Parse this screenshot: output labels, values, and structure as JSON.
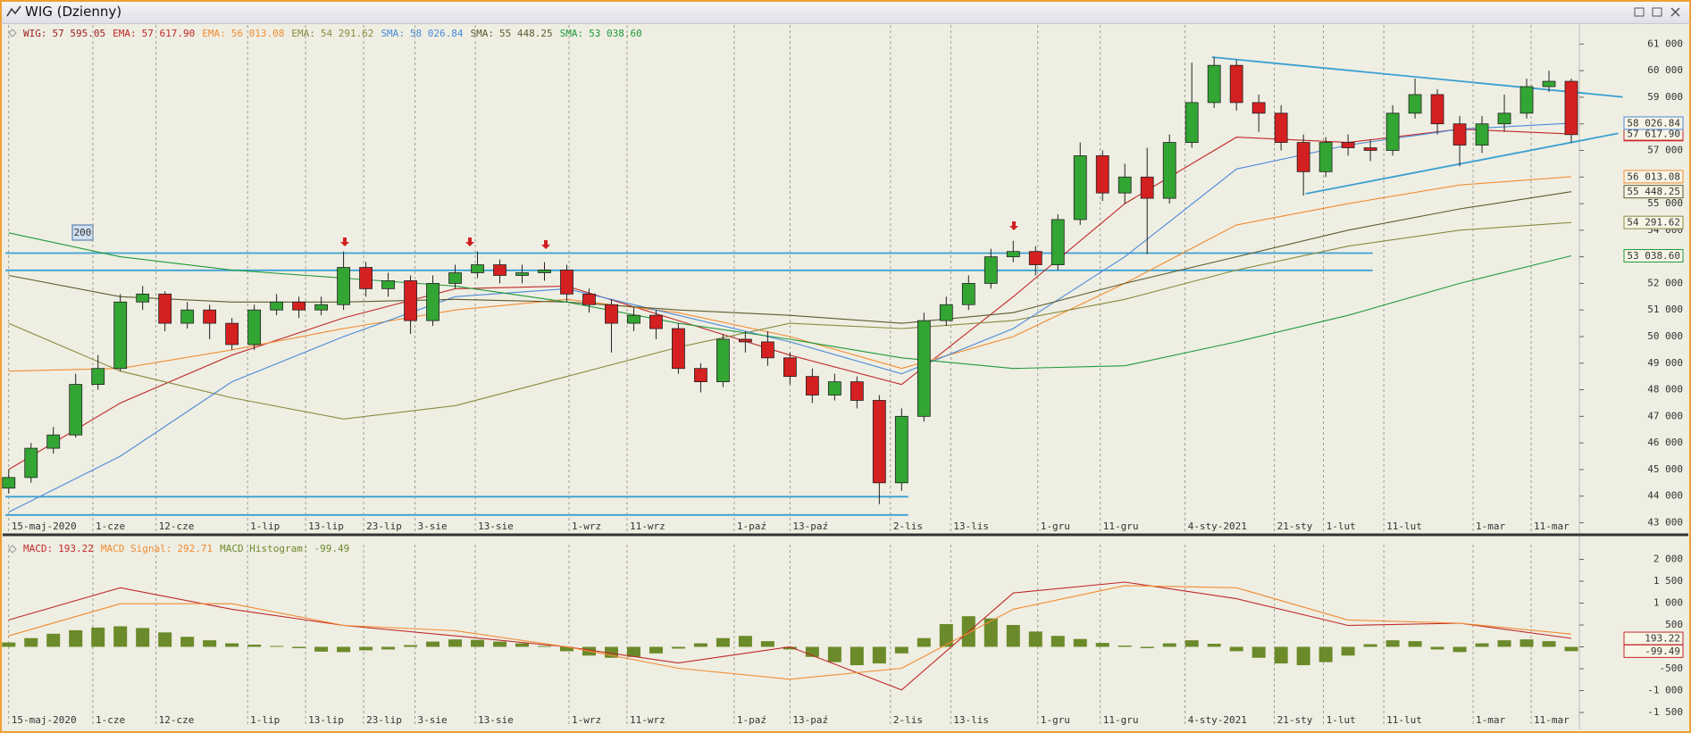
{
  "chart_data": [
    {
      "type": "candlestick",
      "title": "WIG (Dzienny)",
      "name": "WIG",
      "value_label": "57 595.05",
      "annotation": "200",
      "up_color": "#33a533",
      "down_color": "#d42020",
      "open": [
        44300,
        44700,
        45800,
        46300,
        48200,
        48800,
        51300,
        51600,
        50500,
        51000,
        50500,
        49700,
        51000,
        51300,
        51000,
        51200,
        52600,
        51800,
        52100,
        50600,
        52000,
        52400,
        52700,
        52300,
        52400,
        52500,
        51600,
        51200,
        50500,
        50800,
        50300,
        48800,
        48300,
        49900,
        49800,
        49200,
        48500,
        47800,
        48300,
        47600,
        44500,
        47000,
        50600,
        51200,
        52000,
        53000,
        53200,
        52700,
        54400,
        56800,
        55400,
        56000,
        55200,
        57300,
        58800,
        60200,
        58800,
        58400,
        57300,
        56200,
        57300,
        57100,
        57000,
        58400,
        59100,
        58000,
        57200,
        58000,
        58400,
        59400,
        59600
      ],
      "high": [
        45000,
        46000,
        46600,
        48600,
        49300,
        51600,
        51900,
        51700,
        51300,
        51200,
        50700,
        51200,
        51600,
        51500,
        51500,
        53200,
        52800,
        52400,
        52300,
        52300,
        52700,
        53200,
        52900,
        52700,
        52800,
        52700,
        51800,
        51400,
        51100,
        51000,
        50500,
        49000,
        50100,
        50200,
        50200,
        49400,
        48800,
        48600,
        48500,
        47800,
        47300,
        50900,
        51500,
        52300,
        53300,
        53600,
        53400,
        54600,
        57300,
        57000,
        56500,
        57100,
        57600,
        60300,
        60500,
        60400,
        59100,
        58700,
        57600,
        57500,
        57600,
        57400,
        58700,
        59700,
        59300,
        58300,
        58300,
        59100,
        59700,
        60000,
        59700
      ],
      "low": [
        44100,
        44500,
        45600,
        46200,
        48000,
        48700,
        51000,
        50200,
        50300,
        49900,
        49500,
        49500,
        50800,
        50700,
        50800,
        51000,
        51500,
        51500,
        50100,
        50400,
        51800,
        52200,
        52000,
        52000,
        52100,
        51300,
        50900,
        49400,
        50200,
        49900,
        48600,
        47900,
        48100,
        49400,
        48900,
        48200,
        47500,
        47600,
        47300,
        43700,
        44200,
        46800,
        50400,
        51000,
        51800,
        52800,
        52300,
        52500,
        54200,
        55100,
        55000,
        53100,
        55000,
        57100,
        58600,
        58500,
        57700,
        57000,
        55300,
        56000,
        56800,
        56600,
        56800,
        58200,
        57600,
        56400,
        56900,
        57700,
        58200,
        59200,
        57300
      ],
      "close": [
        44700,
        45800,
        46300,
        48200,
        48800,
        51300,
        51600,
        50500,
        51000,
        50500,
        49700,
        51000,
        51300,
        51000,
        51200,
        52600,
        51800,
        52100,
        50600,
        52000,
        52400,
        52700,
        52300,
        52400,
        52500,
        51600,
        51200,
        50500,
        50800,
        50300,
        48800,
        48300,
        49900,
        49800,
        49200,
        48500,
        47800,
        48300,
        47600,
        44500,
        47000,
        50600,
        51200,
        52000,
        53000,
        53200,
        52700,
        54400,
        56800,
        55400,
        56000,
        55200,
        57300,
        58800,
        60200,
        58800,
        58400,
        57300,
        56200,
        57300,
        57100,
        57000,
        58400,
        59100,
        58000,
        57200,
        58000,
        58400,
        59400,
        59600,
        57595.05
      ],
      "series": [
        {
          "name": "EMA",
          "value_label": "57 617.90",
          "color": "#c02828",
          "x": [
            0,
            5,
            10,
            15,
            20,
            25,
            30,
            35,
            40,
            45,
            50,
            55,
            60,
            65,
            70
          ],
          "values": [
            45000,
            47500,
            49300,
            50700,
            51800,
            51900,
            50600,
            49300,
            48200,
            51500,
            55000,
            57500,
            57300,
            57800,
            57617.9
          ]
        },
        {
          "name": "EMA",
          "value_label": "56 013.08",
          "color": "#f08c30",
          "x": [
            0,
            5,
            10,
            15,
            20,
            25,
            30,
            35,
            40,
            45,
            50,
            55,
            60,
            65,
            70
          ],
          "values": [
            48700,
            48800,
            49500,
            50300,
            51000,
            51400,
            50900,
            50000,
            48800,
            50000,
            52000,
            54200,
            55000,
            55700,
            56013.08
          ]
        },
        {
          "name": "EMA",
          "value_label": "54 291.62",
          "color": "#8a8a40",
          "x": [
            0,
            5,
            10,
            15,
            20,
            25,
            30,
            35,
            40,
            45,
            50,
            55,
            60,
            65,
            70
          ],
          "values": [
            50500,
            48700,
            47700,
            46900,
            47400,
            48500,
            49600,
            50500,
            50300,
            50600,
            51400,
            52500,
            53400,
            54000,
            54291.62
          ]
        },
        {
          "name": "SMA",
          "value_label": "58 026.84",
          "color": "#4a8ad8",
          "x": [
            0,
            5,
            10,
            15,
            20,
            25,
            30,
            35,
            40,
            45,
            50,
            55,
            60,
            65,
            70
          ],
          "values": [
            43400,
            45500,
            48300,
            50000,
            51500,
            51800,
            50800,
            49800,
            48600,
            50300,
            53000,
            56300,
            57200,
            57800,
            58026.84
          ]
        },
        {
          "name": "SMA",
          "value_label": "55 448.25",
          "color": "#5c5c30",
          "x": [
            0,
            5,
            10,
            15,
            20,
            25,
            30,
            35,
            40,
            45,
            50,
            55,
            60,
            65,
            70
          ],
          "values": [
            52300,
            51500,
            51300,
            51300,
            51400,
            51300,
            51000,
            50800,
            50500,
            50900,
            52000,
            53000,
            54000,
            54800,
            55448.25
          ]
        },
        {
          "name": "SMA",
          "value_label": "53 038.60",
          "color": "#1f9a3a",
          "x": [
            0,
            5,
            10,
            15,
            20,
            25,
            30,
            35,
            40,
            45,
            50,
            55,
            60,
            65,
            70
          ],
          "values": [
            53900,
            53000,
            52500,
            52200,
            51900,
            51300,
            50500,
            49900,
            49200,
            48800,
            48900,
            49800,
            50800,
            52000,
            53038.6
          ]
        }
      ],
      "lines_color": "#3aa0d0",
      "lines": [
        {
          "x": [
            -0.15,
            61.1
          ],
          "values": [
            53140,
            53140
          ]
        },
        {
          "x": [
            -0.15,
            61.1
          ],
          "values": [
            52490,
            52490
          ]
        },
        {
          "x": [
            -0.15,
            40.3
          ],
          "values": [
            43980,
            43980
          ]
        },
        {
          "x": [
            -0.15,
            40.3
          ],
          "values": [
            43290,
            43290
          ]
        },
        {
          "x": [
            53.9,
            72.3
          ],
          "values": [
            60510,
            59010
          ]
        },
        {
          "x": [
            58.1,
            72.1
          ],
          "values": [
            55370,
            57640
          ]
        }
      ],
      "xlim": [
        -0.15,
        70.36
      ],
      "xticks": [
        {
          "value": 0,
          "label": "15-maj-2020"
        },
        {
          "value": 3.77,
          "label": "1-cze"
        },
        {
          "value": 6.6,
          "label": "12-cze"
        },
        {
          "value": 10.7,
          "label": "1-lip"
        },
        {
          "value": 13.3,
          "label": "13-lip"
        },
        {
          "value": 15.9,
          "label": "23-lip"
        },
        {
          "value": 18.2,
          "label": "3-sie"
        },
        {
          "value": 20.9,
          "label": "13-sie"
        },
        {
          "value": 25.1,
          "label": "1-wrz"
        },
        {
          "value": 27.7,
          "label": "11-wrz"
        },
        {
          "value": 32.5,
          "label": "1-paź"
        },
        {
          "value": 35.0,
          "label": "13-paź"
        },
        {
          "value": 39.5,
          "label": "2-lis"
        },
        {
          "value": 42.2,
          "label": "13-lis"
        },
        {
          "value": 46.1,
          "label": "1-gru"
        },
        {
          "value": 48.9,
          "label": "11-gru"
        },
        {
          "value": 52.7,
          "label": "4-sty-2021"
        },
        {
          "value": 56.7,
          "label": "21-sty"
        },
        {
          "value": 58.9,
          "label": "1-lut"
        },
        {
          "value": 61.6,
          "label": "11-lut"
        },
        {
          "value": 65.6,
          "label": "1-mar"
        },
        {
          "value": 68.2,
          "label": "11-mar"
        }
      ],
      "ylim": [
        42680,
        61650
      ],
      "yticks": [
        {
          "value": 43000,
          "label": "43 000"
        },
        {
          "value": 44000,
          "label": "44 000"
        },
        {
          "value": 45000,
          "label": "45 000"
        },
        {
          "value": 46000,
          "label": "46 000"
        },
        {
          "value": 47000,
          "label": "47 000"
        },
        {
          "value": 48000,
          "label": "48 000"
        },
        {
          "value": 49000,
          "label": "49 000"
        },
        {
          "value": 50000,
          "label": "50 000"
        },
        {
          "value": 51000,
          "label": "51 000"
        },
        {
          "value": 52000,
          "label": "52 000"
        },
        {
          "value": 53000,
          "label": "53 000"
        },
        {
          "value": 54000,
          "label": "54 000"
        },
        {
          "value": 55000,
          "label": "55 000"
        },
        {
          "value": 56000,
          "label": "56 000"
        },
        {
          "value": 57000,
          "label": "57 000"
        },
        {
          "value": 58000,
          "label": "58 000"
        },
        {
          "value": 59000,
          "label": "59 000"
        },
        {
          "value": 60000,
          "label": "60 000"
        },
        {
          "value": 61000,
          "label": "61 000"
        }
      ]
    },
    {
      "type": "macd",
      "series": [
        {
          "name": "MACD",
          "color": "#c02828",
          "x": [
            0,
            5,
            10,
            15,
            20,
            25,
            30,
            35,
            40,
            45,
            50,
            55,
            60,
            65,
            70
          ],
          "values": [
            615,
            1350,
            860,
            490,
            250,
            0,
            -370,
            0,
            -985,
            1230,
            1480,
            1100,
            490,
            540,
            193.22
          ]
        },
        {
          "name": "MACD Signal",
          "color": "#f08c30",
          "x": [
            0,
            5,
            10,
            15,
            20,
            25,
            30,
            35,
            40,
            45,
            50,
            55,
            60,
            65,
            70
          ],
          "values": [
            250,
            985,
            985,
            490,
            370,
            0,
            -490,
            -740,
            -490,
            860,
            1400,
            1350,
            615,
            540,
            292.71
          ]
        },
        {
          "name": "MACD Histogram",
          "color": "#6b8a2a",
          "values": [
            100,
            200,
            300,
            380,
            440,
            470,
            430,
            330,
            230,
            150,
            80,
            50,
            20,
            -30,
            -110,
            -120,
            -80,
            -60,
            40,
            120,
            170,
            160,
            120,
            80,
            20,
            -100,
            -200,
            -250,
            -230,
            -150,
            -40,
            80,
            200,
            250,
            130,
            -60,
            -230,
            -350,
            -420,
            -380,
            -150,
            200,
            520,
            700,
            650,
            500,
            350,
            250,
            180,
            90,
            30,
            -30,
            80,
            150,
            70,
            -100,
            -250,
            -380,
            -420,
            -350,
            -200,
            60,
            150,
            130,
            -60,
            -120,
            80,
            150,
            170,
            130,
            -99.49
          ]
        }
      ],
      "xlim": [
        -0.15,
        70.36
      ],
      "xticks": [
        {
          "value": 0,
          "label": "15-maj-2020"
        },
        {
          "value": 3.77,
          "label": "1-cze"
        },
        {
          "value": 6.6,
          "label": "12-cze"
        },
        {
          "value": 10.7,
          "label": "1-lip"
        },
        {
          "value": 13.3,
          "label": "13-lip"
        },
        {
          "value": 15.9,
          "label": "23-lip"
        },
        {
          "value": 18.2,
          "label": "3-sie"
        },
        {
          "value": 20.9,
          "label": "13-sie"
        },
        {
          "value": 25.1,
          "label": "1-wrz"
        },
        {
          "value": 27.7,
          "label": "11-wrz"
        },
        {
          "value": 32.5,
          "label": "1-paź"
        },
        {
          "value": 35.0,
          "label": "13-paź"
        },
        {
          "value": 39.5,
          "label": "2-lis"
        },
        {
          "value": 42.2,
          "label": "13-lis"
        },
        {
          "value": 46.1,
          "label": "1-gru"
        },
        {
          "value": 48.9,
          "label": "11-gru"
        },
        {
          "value": 52.7,
          "label": "4-sty-2021"
        },
        {
          "value": 56.7,
          "label": "21-sty"
        },
        {
          "value": 58.9,
          "label": "1-lut"
        },
        {
          "value": 61.6,
          "label": "11-lut"
        },
        {
          "value": 65.6,
          "label": "1-mar"
        },
        {
          "value": 68.2,
          "label": "11-mar"
        }
      ],
      "ylim": [
        -1786,
        2296
      ],
      "yticks": [
        {
          "value": 2000,
          "label": "2 000"
        },
        {
          "value": 1500,
          "label": "1 500"
        },
        {
          "value": 1000,
          "label": "1 000"
        },
        500,
        0,
        -500,
        {
          "value": -1000,
          "label": "-1 000"
        },
        {
          "value": -1500,
          "label": "-1 500"
        }
      ]
    }
  ]
}
